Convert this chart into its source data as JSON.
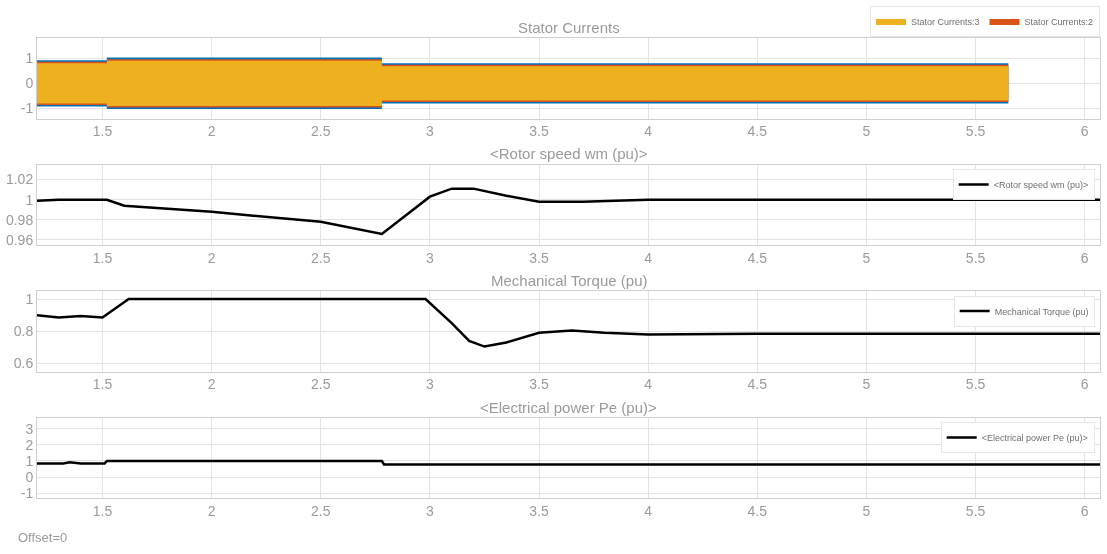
{
  "chart_data": [
    {
      "type": "line",
      "title": "Stator Currents",
      "xlim": [
        1.2,
        6.07
      ],
      "xticks": [
        1.5,
        2,
        2.5,
        3,
        3.5,
        4,
        4.5,
        5,
        5.5,
        6
      ],
      "ylim": [
        -1.4,
        1.8
      ],
      "yticks": [
        -1,
        0,
        1
      ],
      "grid": true,
      "legend": "top right",
      "series": [
        {
          "color": "#0072bd",
          "x": [
            1.2,
            1.52,
            1.52,
            2.78,
            2.78,
            5.65
          ],
          "values": [
            null,
            null,
            null,
            null,
            null,
            null
          ],
          "lower": [
            -0.92,
            -0.92,
            -1.02,
            -1.02,
            -0.8,
            -0.8
          ],
          "upper": [
            0.92,
            0.92,
            1.02,
            1.02,
            0.8,
            0.8
          ]
        },
        {
          "name": "Stator Currents:2",
          "color": "#d95319",
          "x": [
            1.2,
            1.52,
            1.52,
            2.78,
            2.78,
            5.65
          ],
          "values": [
            null,
            null,
            null,
            null,
            null,
            null
          ],
          "lower": [
            -0.86,
            -0.86,
            -0.96,
            -0.96,
            -0.74,
            -0.74
          ],
          "upper": [
            0.86,
            0.86,
            0.96,
            0.96,
            0.74,
            0.74
          ]
        },
        {
          "name": "Stator Currents:3",
          "color": "#edb120",
          "x": [
            1.2,
            1.52,
            1.52,
            2.78,
            2.78,
            5.65
          ],
          "values": [
            null,
            null,
            null,
            null,
            null,
            null
          ],
          "lower": [
            -0.8,
            -0.8,
            -0.9,
            -0.9,
            -0.68,
            -0.68
          ],
          "upper": [
            0.8,
            0.8,
            0.9,
            0.9,
            0.68,
            0.68
          ]
        }
      ]
    },
    {
      "type": "line",
      "title": "<Rotor speed wm (pu)>",
      "xlim": [
        1.2,
        6.07
      ],
      "xticks": [
        1.5,
        2,
        2.5,
        3,
        3.5,
        4,
        4.5,
        5,
        5.5,
        6
      ],
      "ylim": [
        0.955,
        1.035
      ],
      "yticks": [
        0.96,
        0.98,
        1,
        1.02
      ],
      "grid": true,
      "legend": "top right",
      "series": [
        {
          "name": "<Rotor speed wm (pu)>",
          "color": "#000000",
          "x": [
            1.2,
            1.3,
            1.45,
            1.52,
            1.6,
            2.0,
            2.5,
            2.78,
            3.0,
            3.1,
            3.2,
            3.35,
            3.5,
            3.7,
            4.0,
            4.08,
            4.1,
            6.07
          ],
          "values": [
            0.999,
            1.0,
            1.0,
            1.0,
            0.994,
            0.988,
            0.978,
            0.966,
            1.003,
            1.011,
            1.011,
            1.004,
            0.998,
            0.998,
            1.0,
            1.0,
            1.0,
            1.0
          ]
        }
      ]
    },
    {
      "type": "line",
      "title": "Mechanical Torque (pu)",
      "xlim": [
        1.2,
        6.07
      ],
      "xticks": [
        1.5,
        2,
        2.5,
        3,
        3.5,
        4,
        4.5,
        5,
        5.5,
        6
      ],
      "ylim": [
        0.55,
        1.05
      ],
      "yticks": [
        0.6,
        0.8,
        1
      ],
      "grid": true,
      "legend": "top right",
      "series": [
        {
          "name": "Mechanical Torque (pu)",
          "color": "#000000",
          "x": [
            1.2,
            1.3,
            1.4,
            1.5,
            1.62,
            2.98,
            3.1,
            3.18,
            3.25,
            3.35,
            3.5,
            3.65,
            3.8,
            4.0,
            4.5,
            6.07
          ],
          "values": [
            0.9,
            0.885,
            0.895,
            0.885,
            1.0,
            1.0,
            0.85,
            0.74,
            0.705,
            0.73,
            0.79,
            0.805,
            0.79,
            0.78,
            0.785,
            0.785
          ]
        }
      ]
    },
    {
      "type": "line",
      "title": "<Electrical power Pe (pu)>",
      "xlim": [
        1.2,
        6.07
      ],
      "xticks": [
        1.5,
        2,
        2.5,
        3,
        3.5,
        4,
        4.5,
        5,
        5.5,
        6
      ],
      "ylim": [
        -1.3,
        3.7
      ],
      "yticks": [
        -1,
        0,
        1,
        2,
        3
      ],
      "grid": true,
      "legend": "top right",
      "annotations": [
        "Offset=0"
      ],
      "series": [
        {
          "name": "<Electrical power Pe (pu)>",
          "color": "#000000",
          "x": [
            1.2,
            1.32,
            1.35,
            1.4,
            1.51,
            1.52,
            2.78,
            2.79,
            6.07
          ],
          "values": [
            0.85,
            0.85,
            0.92,
            0.85,
            0.85,
            1.0,
            1.0,
            0.78,
            0.78
          ]
        }
      ]
    }
  ]
}
